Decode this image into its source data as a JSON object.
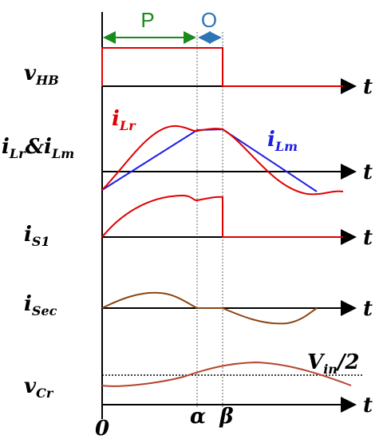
{
  "phases": [
    "P",
    "O"
  ],
  "rows": [
    {
      "label": [
        "v",
        "HB"
      ],
      "axis_label": "t"
    },
    {
      "label": [
        "i",
        "Lr",
        "&i",
        "Lm"
      ],
      "axis_label": "t"
    },
    {
      "label": [
        "i",
        "S1"
      ],
      "axis_label": "t"
    },
    {
      "label": [
        "i",
        "Sec"
      ],
      "axis_label": "t"
    },
    {
      "label": [
        "v",
        "Cr"
      ],
      "axis_label": "t"
    }
  ],
  "curve_labels": [
    [
      "i",
      "Lr"
    ],
    [
      "i",
      "Lm"
    ]
  ],
  "reference_label": [
    "V",
    "in",
    "/2"
  ],
  "time_marks": [
    "0",
    "α",
    "β"
  ]
}
